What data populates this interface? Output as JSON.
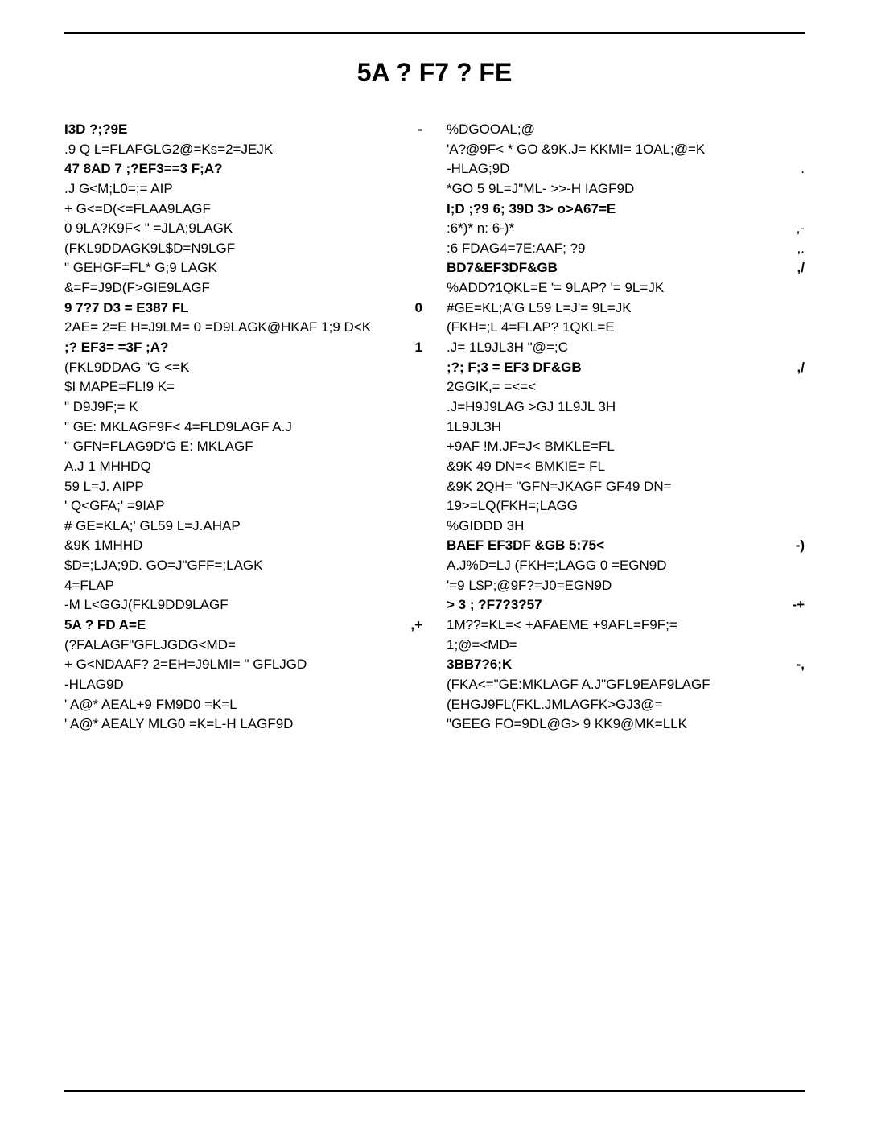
{
  "title": "5A ? F7 ? FE",
  "left": [
    {
      "text": "I3D   ?;?9E",
      "num": "-",
      "bold": true
    },
    {
      "text": ".9 Q  L=FLAFGLG2@=Ks=2=JEJK"
    },
    {
      "text": "47 8AD 7  ;?EF3==3   F;A?",
      "bold": true
    },
    {
      "text": ".J G<M;L0=;=  AIP"
    },
    {
      "text": "+ G<=D(<=FLAA9LAGF"
    },
    {
      "text": "0 9LA?K9F< \" =JLA;9LAGK"
    },
    {
      "text": "(FKL9DDAGK9L$D=N9LGF"
    },
    {
      "text": "\" GEHGF=FL* G;9 LAGK"
    },
    {
      "text": "&=F=J9D(F>GIE9LAGF"
    },
    {
      "text": "9 7?7  D3 = E387 FL",
      "num": "0",
      "bold": true
    },
    {
      "text": "2AE= 2=E H=J9LM= 0 =D9LAGK@HKAF 1;9 D<K"
    },
    {
      "text": ";?  EF3=  =3F  ;A?",
      "num": "1",
      "bold": true
    },
    {
      "text": "(FKL9DDAG \"G <=K"
    },
    {
      "text": "$I MAPE=FL!9 K="
    },
    {
      "text": "\" D9J9F;= K"
    },
    {
      "text": "\" GE: MKLAGF9F< 4=FLD9LAGF  A.J"
    },
    {
      "text": "\" GFN=FLAG9D'G E: MKLAGF"
    },
    {
      "text": "  A.J 1 MHHDQ"
    },
    {
      "text": "59 L=J. AIPP"
    },
    {
      "text": "'  Q<GFA;' =9IAP"
    },
    {
      "text": "# GE=KLA;'  GL59 L=J.AHAP"
    },
    {
      "text": "&9K 1MHHD"
    },
    {
      "text": "$D=;LJA;9D.  GO=J\"GFF=;LAGK"
    },
    {
      "text": "4=FLAP"
    },
    {
      "text": "-M L<GGJ(FKL9DD9LAGF"
    },
    {
      "text": "5A ? FD A=E",
      "num": ",+",
      "bold": true
    },
    {
      "text": "(?FALAGF\"GFLJGDG<MD="
    },
    {
      "text": "+ G<NDAAF? 2=EH=J9LMI= \" GFLJGD"
    },
    {
      "text": " -HLAG9D"
    },
    {
      "text": "'  A@*  AEAL+9  FM9D0 =K=L"
    },
    {
      "text": "'  A@*  AEALY   MLG0 =K=L-H  LAGF9D"
    }
  ],
  "right": [
    {
      "text": "%DGOOAL;@"
    },
    {
      "text": "'A?@9F< * GO &9K.J= KKMI= 1OAL;@=K"
    },
    {
      "text": " -HLAG;9D",
      "num": "."
    },
    {
      "text": "*GO 5 9L=J\"ML-  >>-H  IAGF9D"
    },
    {
      "text": "I;D  ;?9   6; 39D  3>  o>A67=E",
      "bold": true
    },
    {
      "text": ":6*)*     n: 6-)*",
      "num": ",-"
    },
    {
      "text": ":6   FDAG4=7E:AAF;     ?9",
      "num": ",."
    },
    {
      "text": "BD7&EF3DF&GB",
      "num": ",/",
      "bold": true
    },
    {
      "text": "%ADD?1QKL=E '=  9LAP? '= 9L=JK"
    },
    {
      "text": "#GE=KL;A'G L59 L=J'=  9L=JK"
    },
    {
      "text": "(FKH=;L 4=FLAP? 1QKL=E"
    },
    {
      "text": ".J= 1L9JL3H  \"@=;C"
    },
    {
      "text": ";?;  F;3 =  EF3  DF&GB",
      "num": ",/",
      "bold": true
    },
    {
      "text": "2GGIK,= =<=<"
    },
    {
      "text": ".J=H9J9LAG >GJ 1L9JL 3H"
    },
    {
      "text": "1L9JL3H"
    },
    {
      "text": "+9AF !M.JF=J<  BMKLE=FL"
    },
    {
      "text": "&9K 49 DN=< BMKIE= FL"
    },
    {
      "text": "&9K 2QH= \"GFN=JKAGF GF49 DN="
    },
    {
      "text": "19>=LQ(FKH=;LAGG"
    },
    {
      "text": "%GIDDD 3H"
    },
    {
      "text": "BAEF  EF3DF  &GB 5:75<",
      "num": "-)",
      "bold": true
    },
    {
      "text": " A.J%D=LJ (FKH=;LAGG 0 =EGN9D"
    },
    {
      "text": "'=9  L$P;@9F?=J0=EGN9D"
    },
    {
      "text": "> 3 ; ?F7?3?57",
      "num": "-+",
      "bold": true
    },
    {
      "text": "1M??=KL=< +AFAEME  +9AFL=F9F;="
    },
    {
      "text": "1;@=<MD="
    },
    {
      "text": "3BB7?6;K",
      "num": "-,",
      "bold": true
    },
    {
      "text": "(FKA<=\"GE:MKLAGF  A.J\"GFL9EAF9LAGF"
    },
    {
      "text": "(EHGJ9FL(FKL.JMLAGFK>GJ3@="
    },
    {
      "text": "\"GEEG FO=9DL@G> 9 KK9@MK=LLK"
    }
  ]
}
